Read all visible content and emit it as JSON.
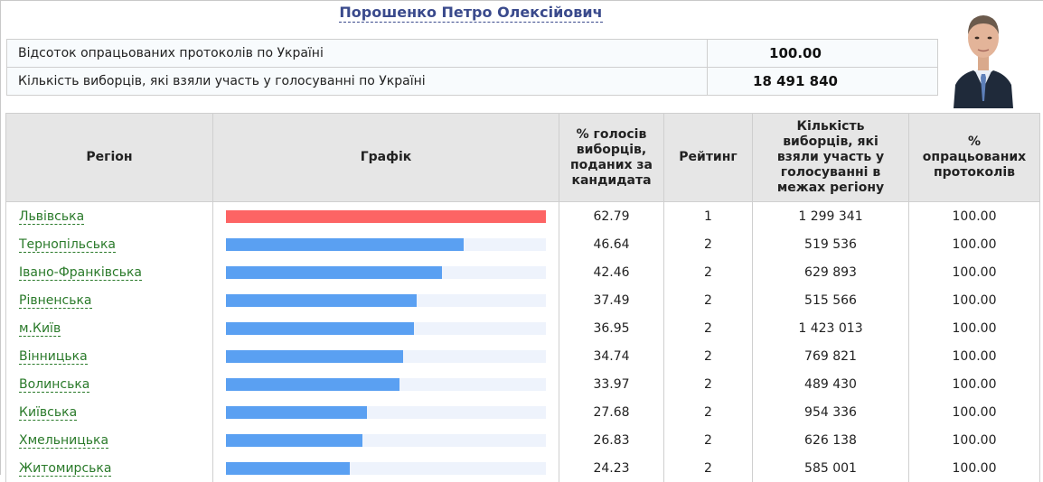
{
  "candidate": {
    "name": "Порошенко Петро Олексійович"
  },
  "summary": {
    "rows": [
      {
        "label": "Відсоток опрацьованих протоколів по Україні",
        "value": "100.00"
      },
      {
        "label": "Кількість виборців, які взяли участь у голосуванні по Україні",
        "value": "18 491 840"
      }
    ]
  },
  "table": {
    "headers": {
      "region": "Регіон",
      "chart": "Графік",
      "percent": "% голосів виборців, поданих за кандидата",
      "rank": "Рейтинг",
      "voters": "Кількість виборців, які взяли участь у голосуванні в межах регіону",
      "processed": "% опрацьованих протоколів"
    },
    "rows": [
      {
        "region": "Львівська",
        "percent": "62.79",
        "rank": "1",
        "voters": "1 299 341",
        "processed": "100.00",
        "share": 62.79
      },
      {
        "region": "Тернопільська",
        "percent": "46.64",
        "rank": "2",
        "voters": "519 536",
        "processed": "100.00",
        "share": 46.64
      },
      {
        "region": "Івано-Франківська",
        "percent": "42.46",
        "rank": "2",
        "voters": "629 893",
        "processed": "100.00",
        "share": 42.46
      },
      {
        "region": "Рівненська",
        "percent": "37.49",
        "rank": "2",
        "voters": "515 566",
        "processed": "100.00",
        "share": 37.49
      },
      {
        "region": "м.Київ",
        "percent": "36.95",
        "rank": "2",
        "voters": "1 423 013",
        "processed": "100.00",
        "share": 36.95
      },
      {
        "region": "Вінницька",
        "percent": "34.74",
        "rank": "2",
        "voters": "769 821",
        "processed": "100.00",
        "share": 34.74
      },
      {
        "region": "Волинська",
        "percent": "33.97",
        "rank": "2",
        "voters": "489 430",
        "processed": "100.00",
        "share": 33.97
      },
      {
        "region": "Київська",
        "percent": "27.68",
        "rank": "2",
        "voters": "954 336",
        "processed": "100.00",
        "share": 27.68
      },
      {
        "region": "Хмельницька",
        "percent": "26.83",
        "rank": "2",
        "voters": "626 138",
        "processed": "100.00",
        "share": 26.83
      },
      {
        "region": "Житомирська",
        "percent": "24.23",
        "rank": "2",
        "voters": "585 001",
        "processed": "100.00",
        "share": 24.23
      }
    ]
  },
  "bar_colors": {
    "leader": "#fd6464",
    "other": "#5aa0f2",
    "track": "#eef3fc"
  },
  "bar_scale_max": 62.79
}
